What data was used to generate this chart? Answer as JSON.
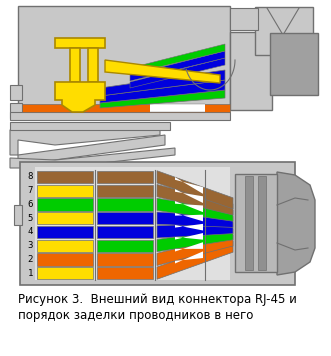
{
  "caption_line1": "Рисунок 3.  Внешний вид коннектора RJ-45 и",
  "caption_line2": "порядок заделки проводников в него",
  "caption_fontsize": 8.5,
  "bg_color": "#ffffff",
  "lgray": "#c8c8c8",
  "mgray": "#a0a0a0",
  "dgray": "#707070",
  "white": "#ffffff",
  "yellow": "#ffdd00",
  "orange": "#ee6600",
  "green": "#00cc00",
  "blue": "#0000dd",
  "brown": "#996633",
  "wire_order_bottom_to_top": [
    {
      "label": "1",
      "stripe": "yellow",
      "main": "orange"
    },
    {
      "label": "2",
      "stripe": "orange",
      "main": "orange"
    },
    {
      "label": "3",
      "stripe": "yellow",
      "main": "green"
    },
    {
      "label": "4",
      "stripe": "blue",
      "main": "blue"
    },
    {
      "label": "5",
      "stripe": "yellow",
      "main": "blue"
    },
    {
      "label": "6",
      "stripe": "green",
      "main": "green"
    },
    {
      "label": "7",
      "stripe": "yellow",
      "main": "brown"
    },
    {
      "label": "8",
      "stripe": "brown",
      "main": "brown"
    }
  ]
}
